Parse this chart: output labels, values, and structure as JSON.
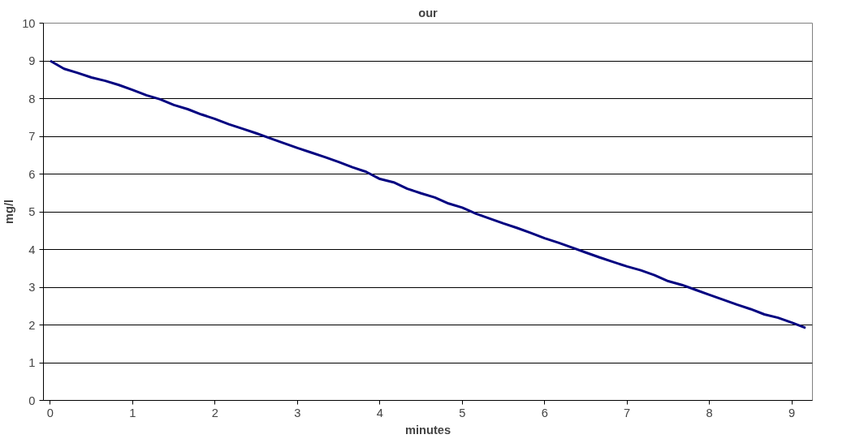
{
  "chart_data": {
    "type": "line",
    "title": "our",
    "xlabel": "minutes",
    "ylabel": "mg/l",
    "x": [
      0,
      0.167,
      0.333,
      0.5,
      0.667,
      0.833,
      1,
      1.167,
      1.333,
      1.5,
      1.667,
      1.833,
      2,
      2.167,
      2.333,
      2.5,
      2.667,
      2.833,
      3,
      3.167,
      3.333,
      3.5,
      3.667,
      3.833,
      4,
      4.167,
      4.333,
      4.5,
      4.667,
      4.833,
      5,
      5.167,
      5.333,
      5.5,
      5.667,
      5.833,
      6,
      6.167,
      6.333,
      6.5,
      6.667,
      6.833,
      7,
      7.167,
      7.333,
      7.5,
      7.667,
      7.833,
      8,
      8.167,
      8.333,
      8.5,
      8.667,
      8.833,
      9,
      9.167
    ],
    "series": [
      {
        "color": "#000080",
        "values": [
          9.0,
          8.79,
          8.68,
          8.56,
          8.47,
          8.36,
          8.23,
          8.09,
          7.98,
          7.83,
          7.72,
          7.58,
          7.46,
          7.32,
          7.2,
          7.08,
          6.95,
          6.82,
          6.69,
          6.57,
          6.45,
          6.32,
          6.18,
          6.06,
          5.87,
          5.78,
          5.61,
          5.49,
          5.38,
          5.22,
          5.11,
          4.95,
          4.82,
          4.69,
          4.57,
          4.44,
          4.3,
          4.18,
          4.05,
          3.92,
          3.79,
          3.67,
          3.55,
          3.45,
          3.32,
          3.16,
          3.06,
          2.93,
          2.8,
          2.67,
          2.54,
          2.42,
          2.28,
          2.19,
          2.06,
          1.92
        ]
      }
    ],
    "xlim": [
      -0.083,
      9.25
    ],
    "xticks": [
      0,
      1,
      2,
      3,
      4,
      5,
      6,
      7,
      8,
      9
    ],
    "ylim": [
      0,
      10
    ],
    "yticks": [
      0,
      1,
      2,
      3,
      4,
      5,
      6,
      7,
      8,
      9,
      10
    ],
    "grid": "y",
    "marker": "none",
    "line_style": "solid"
  }
}
